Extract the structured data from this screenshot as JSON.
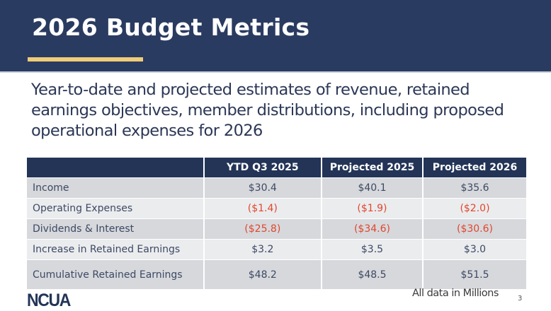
{
  "slide": {
    "title": "2026 Budget Metrics",
    "subtitle": "Year-to-date and projected estimates of revenue, retained earnings objectives, member distributions, including proposed operational expenses for 2026",
    "colors": {
      "header_bg": "#2a3b61",
      "accent": "#f0cc78",
      "negative": "#e0472d"
    }
  },
  "table": {
    "headers": [
      "",
      "YTD Q3 2025",
      "Projected 2025",
      "Projected 2026"
    ],
    "rows": [
      {
        "label": "Income",
        "values": [
          "$30.4",
          "$40.1",
          "$35.6"
        ]
      },
      {
        "label": "Operating Expenses",
        "values": [
          "($1.4)",
          "($1.9)",
          "($2.0)"
        ]
      },
      {
        "label": "Dividends & Interest",
        "values": [
          "($25.8)",
          "($34.6)",
          "($30.6)"
        ]
      },
      {
        "label": "Increase in Retained Earnings",
        "values": [
          "$3.2",
          "$3.5",
          "$3.0"
        ]
      },
      {
        "label": "Cumulative Retained Earnings",
        "values": [
          "$48.2",
          "$48.5",
          "$51.5"
        ]
      }
    ]
  },
  "footer": {
    "logo_text": "NCUA",
    "note": "All data in Millions",
    "page_number": "3"
  }
}
